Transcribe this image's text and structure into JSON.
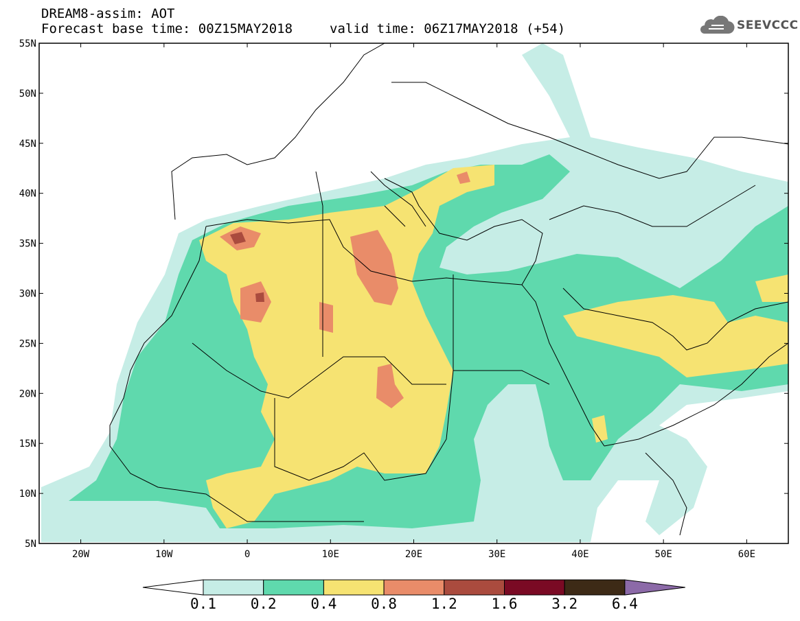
{
  "header": {
    "line1": "DREAM8-assim: AOT",
    "line2": "Forecast base time: 00Z15MAY2018",
    "valid": "valid time: 06Z17MAY2018 (+54)",
    "logo_text": "SEEVCCC",
    "logo_icon": "cloud-icon"
  },
  "map": {
    "extent": {
      "lon": [
        -25,
        65
      ],
      "lat": [
        5,
        55
      ]
    },
    "lat_ticks": [
      "5N",
      "10N",
      "15N",
      "20N",
      "25N",
      "30N",
      "35N",
      "40N",
      "45N",
      "50N",
      "55N"
    ],
    "lon_ticks": [
      "20W",
      "10W",
      "0",
      "10E",
      "20E",
      "30E",
      "40E",
      "50E",
      "60E"
    ],
    "lon_values": [
      -20,
      -10,
      0,
      10,
      20,
      30,
      40,
      50,
      60
    ],
    "lat_values": [
      5,
      10,
      15,
      20,
      25,
      30,
      35,
      40,
      45,
      50,
      55
    ]
  },
  "colorbar": {
    "labels": [
      "0.1",
      "0.2",
      "0.4",
      "0.8",
      "1.2",
      "1.6",
      "3.2",
      "6.4"
    ],
    "colors": [
      "#ffffff",
      "#c6ede6",
      "#5fd9ad",
      "#f6e372",
      "#e98c69",
      "#aa4b3e",
      "#7a0a24",
      "#3d2a16",
      "#8c6aa8"
    ]
  }
}
